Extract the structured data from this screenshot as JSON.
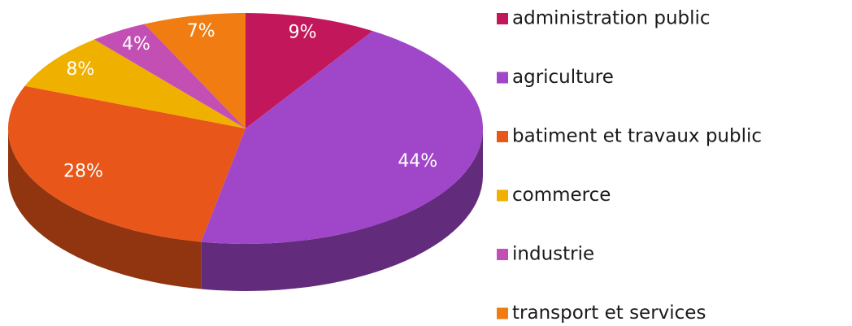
{
  "chart_data": {
    "type": "pie",
    "categories": [
      "administration public",
      "agriculture",
      "batiment et travaux public",
      "commerce",
      "industrie",
      "transport et services"
    ],
    "values": [
      9,
      44,
      28,
      8,
      4,
      7
    ],
    "value_labels": [
      "9%",
      "44%",
      "28%",
      "8%",
      "4%",
      "7%"
    ],
    "colors": [
      "#c2185b",
      "#a046c8",
      "#e8561a",
      "#f0b000",
      "#c44fb4",
      "#f07c12"
    ],
    "legend": "right"
  }
}
